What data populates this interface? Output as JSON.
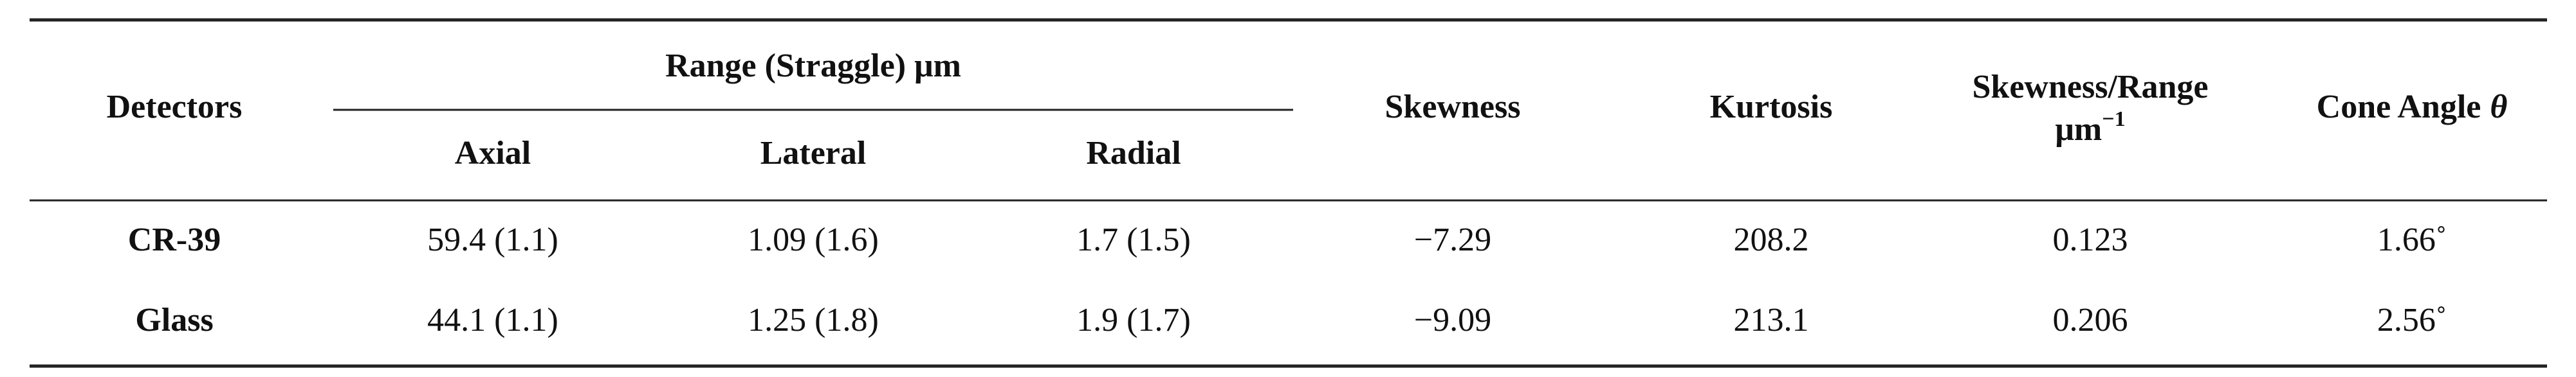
{
  "table": {
    "header": {
      "detectors": "Detectors",
      "range_group": "Range (Straggle) μm",
      "axial": "Axial",
      "lateral": "Lateral",
      "radial": "Radial",
      "skewness": "Skewness",
      "kurtosis": "Kurtosis",
      "skew_range": "Skewness/Range",
      "skew_range_unit": "μm",
      "skew_range_exp": "−1",
      "cone": "Cone Angle",
      "cone_symbol": "θ"
    },
    "rows": [
      [
        "CR-39",
        "59.4 (1.1)",
        "1.09 (1.6)",
        "1.7 (1.5)",
        "−7.29",
        "208.2",
        "0.123",
        "1.66˚"
      ],
      [
        "Glass",
        "44.1 (1.1)",
        "1.25 (1.8)",
        "1.9 (1.7)",
        "−9.09",
        "213.1",
        "0.206",
        "2.56˚"
      ]
    ]
  }
}
